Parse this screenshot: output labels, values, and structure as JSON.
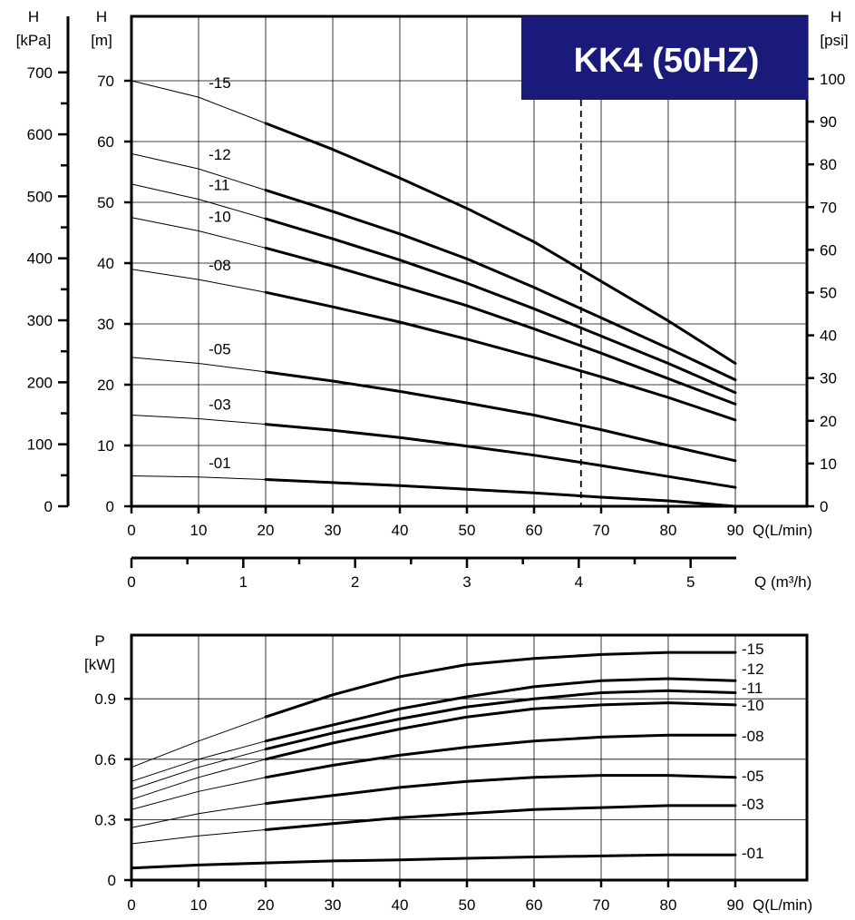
{
  "badge": {
    "text": "KK4 (50HZ)",
    "color": "#1a1a7a"
  },
  "chart_data": [
    {
      "type": "line",
      "name": "head_curves",
      "x_unit": "Q(L/min)",
      "xlim": [
        0,
        90
      ],
      "x_ticks": [
        0,
        10,
        20,
        30,
        40,
        50,
        60,
        70,
        80,
        90
      ],
      "y_left_m": {
        "label_top": "H",
        "label_unit": "[m]",
        "ylim": [
          0,
          70
        ],
        "ticks": [
          0,
          10,
          20,
          30,
          40,
          50,
          60,
          70
        ]
      },
      "y_left_kpa": {
        "label_top": "H",
        "label_unit": "[kPa]",
        "ticks": [
          0,
          100,
          200,
          300,
          400,
          500,
          600,
          700
        ]
      },
      "y_right_psi": {
        "label_top": "H",
        "label_unit": "[psi]",
        "ticks": [
          0,
          10,
          20,
          30,
          40,
          50,
          60,
          70,
          80,
          90,
          100
        ]
      },
      "secondary_x": {
        "unit": "Q (m³/h)",
        "ticks": [
          0,
          1,
          2,
          3,
          4,
          5
        ]
      },
      "operating_point_q": 67,
      "grid": true,
      "series": [
        {
          "name": "-15",
          "x": [
            0,
            10,
            20,
            30,
            40,
            50,
            60,
            70,
            80,
            90
          ],
          "y": [
            70,
            67.3,
            63,
            58.7,
            54,
            49,
            43.5,
            37,
            30.5,
            23.5
          ],
          "y_thin_end_x": 20
        },
        {
          "name": "-12",
          "x": [
            0,
            10,
            20,
            30,
            40,
            50,
            60,
            70,
            80,
            90
          ],
          "y": [
            58,
            55.5,
            52,
            48.5,
            44.8,
            40.7,
            36,
            31,
            26,
            20.8
          ],
          "y_thin_end_x": 20
        },
        {
          "name": "-11",
          "x": [
            0,
            10,
            20,
            30,
            40,
            50,
            60,
            70,
            80,
            90
          ],
          "y": [
            53,
            50.5,
            47.3,
            44,
            40.5,
            36.7,
            32.5,
            28,
            23.5,
            18.7
          ],
          "y_thin_end_x": 20
        },
        {
          "name": "-10",
          "x": [
            0,
            10,
            20,
            30,
            40,
            50,
            60,
            70,
            80,
            90
          ],
          "y": [
            47.5,
            45.3,
            42.5,
            39.5,
            36.3,
            33,
            29.2,
            25.2,
            21,
            16.8
          ],
          "y_thin_end_x": 20
        },
        {
          "name": "-08",
          "x": [
            0,
            10,
            20,
            30,
            40,
            50,
            60,
            70,
            80,
            90
          ],
          "y": [
            39,
            37.3,
            35.2,
            32.8,
            30.3,
            27.5,
            24.5,
            21.3,
            17.9,
            14.2
          ],
          "y_thin_end_x": 20
        },
        {
          "name": "-05",
          "x": [
            0,
            10,
            20,
            30,
            40,
            50,
            60,
            70,
            80,
            90
          ],
          "y": [
            24.5,
            23.5,
            22.1,
            20.6,
            18.9,
            17,
            15,
            12.6,
            10,
            7.5
          ],
          "y_thin_end_x": 20
        },
        {
          "name": "-03",
          "x": [
            0,
            10,
            20,
            30,
            40,
            50,
            60,
            70,
            80,
            90
          ],
          "y": [
            15,
            14.4,
            13.5,
            12.5,
            11.3,
            9.9,
            8.4,
            6.7,
            4.9,
            3.1
          ],
          "y_thin_end_x": 20
        },
        {
          "name": "-01",
          "x": [
            0,
            10,
            20,
            30,
            40,
            50,
            60,
            70,
            80,
            90
          ],
          "y": [
            5,
            4.8,
            4.4,
            3.9,
            3.4,
            2.8,
            2.2,
            1.5,
            0.9,
            0
          ],
          "y_thin_end_x": 20
        }
      ]
    },
    {
      "type": "line",
      "name": "power_curves",
      "x_unit": "Q(L/min)",
      "xlim": [
        0,
        90
      ],
      "x_ticks": [
        0,
        10,
        20,
        30,
        40,
        50,
        60,
        70,
        80,
        90
      ],
      "y_label_top": "P",
      "y_label_unit": "[kW]",
      "ylim": [
        0,
        1.2
      ],
      "y_ticks": [
        0,
        0.3,
        0.6,
        0.9
      ],
      "y_tick_labels": [
        "0",
        "0.3",
        "0.6",
        "0.9"
      ],
      "grid": true,
      "series": [
        {
          "name": "-15",
          "x": [
            0,
            10,
            20,
            30,
            40,
            50,
            60,
            70,
            80,
            90
          ],
          "y": [
            0.56,
            0.69,
            0.81,
            0.92,
            1.01,
            1.07,
            1.1,
            1.12,
            1.13,
            1.13
          ],
          "y_thin_end_x": 20
        },
        {
          "name": "-12",
          "x": [
            0,
            10,
            20,
            30,
            40,
            50,
            60,
            70,
            80,
            90
          ],
          "y": [
            0.49,
            0.6,
            0.69,
            0.77,
            0.85,
            0.91,
            0.96,
            0.99,
            1.0,
            0.99
          ],
          "y_thin_end_x": 20
        },
        {
          "name": "-11",
          "x": [
            0,
            10,
            20,
            30,
            40,
            50,
            60,
            70,
            80,
            90
          ],
          "y": [
            0.45,
            0.56,
            0.65,
            0.73,
            0.8,
            0.86,
            0.9,
            0.93,
            0.94,
            0.93
          ],
          "y_thin_end_x": 20
        },
        {
          "name": "-10",
          "x": [
            0,
            10,
            20,
            30,
            40,
            50,
            60,
            70,
            80,
            90
          ],
          "y": [
            0.4,
            0.51,
            0.6,
            0.68,
            0.75,
            0.81,
            0.85,
            0.87,
            0.88,
            0.87
          ],
          "y_thin_end_x": 20
        },
        {
          "name": "-08",
          "x": [
            0,
            10,
            20,
            30,
            40,
            50,
            60,
            70,
            80,
            90
          ],
          "y": [
            0.35,
            0.44,
            0.51,
            0.57,
            0.62,
            0.66,
            0.69,
            0.71,
            0.72,
            0.72
          ],
          "y_thin_end_x": 20
        },
        {
          "name": "-05",
          "x": [
            0,
            10,
            20,
            30,
            40,
            50,
            60,
            70,
            80,
            90
          ],
          "y": [
            0.26,
            0.33,
            0.38,
            0.42,
            0.46,
            0.49,
            0.51,
            0.52,
            0.52,
            0.51
          ],
          "y_thin_end_x": 20
        },
        {
          "name": "-03",
          "x": [
            0,
            10,
            20,
            30,
            40,
            50,
            60,
            70,
            80,
            90
          ],
          "y": [
            0.18,
            0.22,
            0.25,
            0.28,
            0.31,
            0.33,
            0.35,
            0.36,
            0.37,
            0.37
          ],
          "y_thin_end_x": 20
        },
        {
          "name": "-01",
          "x": [
            0,
            10,
            20,
            30,
            40,
            50,
            60,
            70,
            80,
            90
          ],
          "y": [
            0.06,
            0.075,
            0.085,
            0.095,
            0.1,
            0.108,
            0.115,
            0.12,
            0.125,
            0.125
          ],
          "y_thin_end_x": 0
        }
      ]
    }
  ]
}
